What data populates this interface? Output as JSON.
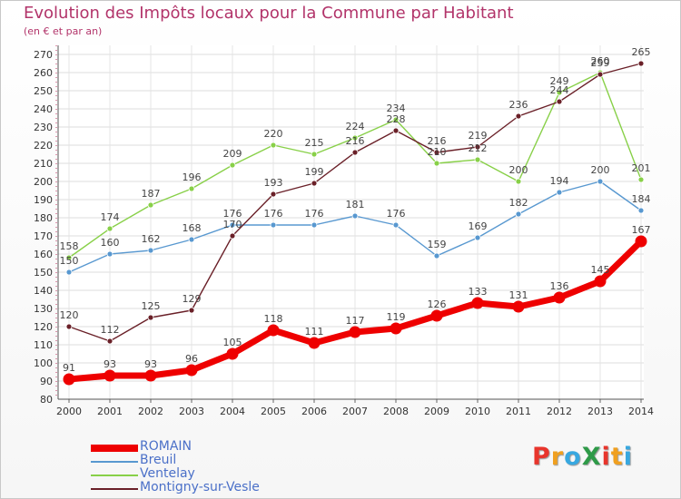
{
  "header": {
    "title": "Evolution des Impôts locaux pour la Commune par Habitant",
    "subtitle": "(en € et par an)"
  },
  "brand": {
    "text": "ProXiti",
    "colors": [
      "#e8352c",
      "#f0a020",
      "#38a8e0",
      "#2e9a48",
      "#e8352c",
      "#f0a020",
      "#38a8e0"
    ]
  },
  "chart_data": {
    "type": "line",
    "x": [
      "2000",
      "2001",
      "2002",
      "2003",
      "2004",
      "2005",
      "2006",
      "2007",
      "2008",
      "2009",
      "2010",
      "2011",
      "2012",
      "2013",
      "2014"
    ],
    "ylim": [
      80,
      270
    ],
    "yticks": [
      80,
      90,
      100,
      110,
      120,
      130,
      140,
      150,
      160,
      170,
      180,
      190,
      200,
      210,
      220,
      230,
      240,
      250,
      260,
      270
    ],
    "grid": true,
    "legend_position": "bottom-left",
    "series": [
      {
        "name": "Ventelay",
        "color": "#88d048",
        "values": [
          158,
          174,
          187,
          196,
          209,
          220,
          215,
          224,
          234,
          210,
          212,
          200,
          249,
          260,
          201
        ],
        "labels": [
          "158",
          "174",
          "187",
          "196",
          "209",
          "220",
          "215",
          "224",
          "234",
          "210",
          "212",
          "200",
          "249",
          "260",
          "201"
        ]
      },
      {
        "name": "Breuil",
        "color": "#5898d0",
        "values": [
          150,
          160,
          162,
          168,
          176,
          176,
          176,
          181,
          176,
          159,
          169,
          182,
          194,
          200,
          184
        ],
        "labels": [
          "150",
          "160",
          "162",
          "168",
          "176",
          "176",
          "176",
          "181",
          "176",
          "159",
          "169",
          "182",
          "194",
          "200",
          "184"
        ]
      },
      {
        "name": "Montigny-sur-Vesle",
        "color": "#6a2028",
        "values": [
          120,
          112,
          125,
          129,
          170,
          193,
          199,
          216,
          228,
          216,
          219,
          236,
          244,
          259,
          265
        ],
        "labels": [
          "120",
          "112",
          "125",
          "129",
          "170",
          "193",
          "199",
          "216",
          "228",
          "216",
          "219",
          "236",
          "244",
          "259",
          "265"
        ]
      },
      {
        "name": "ROMAIN",
        "color": "#ee0000",
        "values": [
          91,
          93,
          93,
          96,
          105,
          118,
          111,
          117,
          119,
          126,
          133,
          131,
          136,
          145,
          167
        ],
        "labels": [
          "91",
          "93",
          "93",
          "96",
          "105",
          "118",
          "111",
          "117",
          "119",
          "126",
          "133",
          "131",
          "136",
          "145",
          "167"
        ]
      }
    ],
    "legend": [
      "ROMAIN",
      "Breuil",
      "Ventelay",
      "Montigny-sur-Vesle"
    ]
  }
}
